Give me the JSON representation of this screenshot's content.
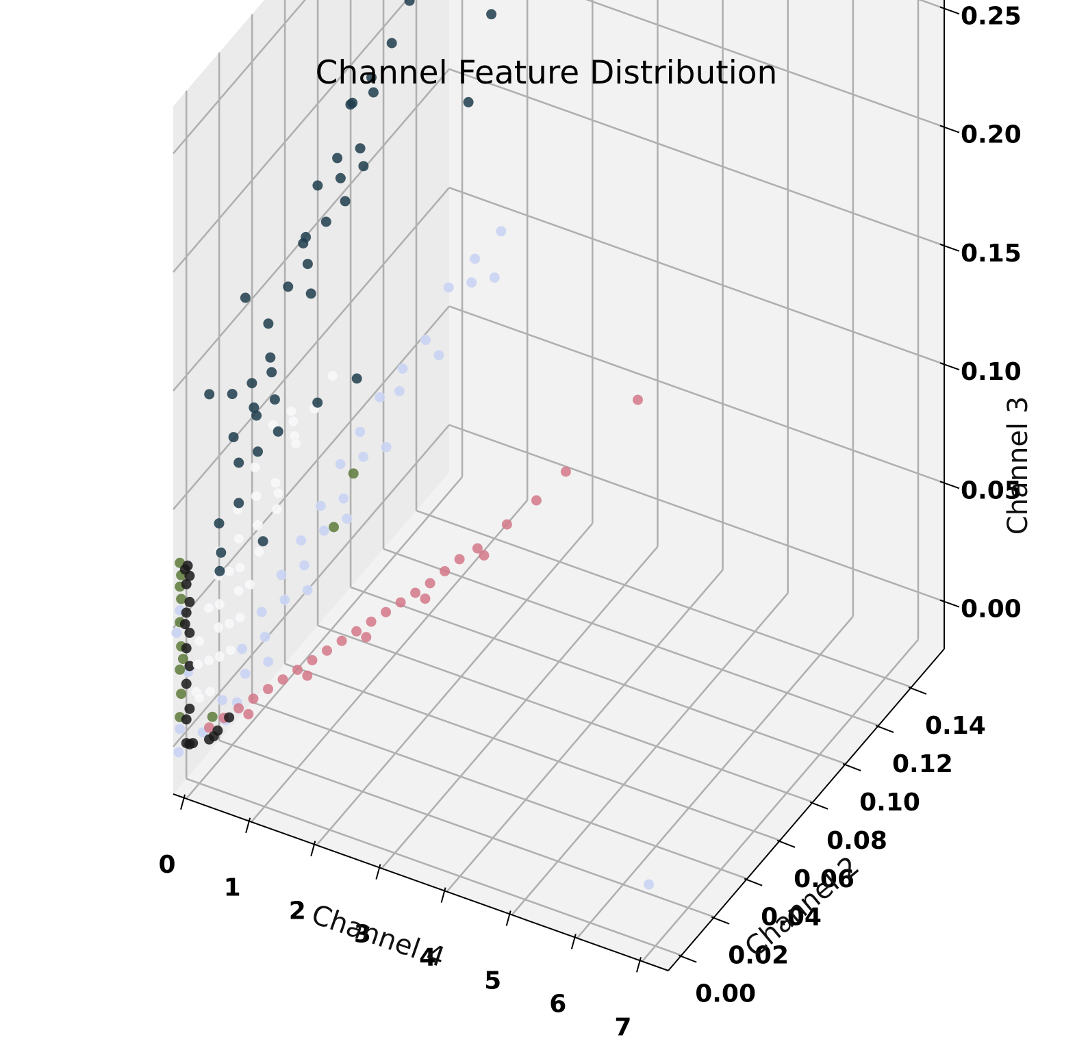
{
  "chart_data": {
    "type": "scatter",
    "dimensions": 3,
    "title": "Channel Feature Distribution",
    "xlabel": "Channel 4",
    "ylabel": "Channel 2",
    "zlabel": "Channel 3",
    "xlim": [
      -0.2,
      7.4
    ],
    "ylim": [
      -0.008,
      0.16
    ],
    "zlim": [
      -0.02,
      0.27
    ],
    "x_ticks": [
      "0",
      "1",
      "2",
      "3",
      "4",
      "5",
      "6",
      "7"
    ],
    "y_ticks": [
      "0.00",
      "0.02",
      "0.04",
      "0.06",
      "0.08",
      "0.10",
      "0.12",
      "0.14"
    ],
    "z_ticks": [
      "0.00",
      "0.05",
      "0.10",
      "0.15",
      "0.20",
      "0.25"
    ],
    "grid": true,
    "series": [
      {
        "color": "#1e3d4c",
        "points": [
          [
            0.15,
            0.16,
            0.265
          ],
          [
            0.12,
            0.15,
            0.255
          ],
          [
            0.08,
            0.14,
            0.24
          ],
          [
            0.1,
            0.14,
            0.238
          ],
          [
            0.3,
            0.16,
            0.228
          ],
          [
            0.22,
            0.14,
            0.225
          ],
          [
            0.5,
            0.16,
            0.232
          ],
          [
            0.2,
            0.12,
            0.215
          ],
          [
            0.25,
            0.13,
            0.213
          ],
          [
            0.35,
            0.14,
            0.205
          ],
          [
            0.18,
            0.11,
            0.205
          ],
          [
            0.12,
            0.1,
            0.198
          ],
          [
            0.05,
            0.09,
            0.194
          ],
          [
            0.08,
            0.09,
            0.195
          ],
          [
            0.15,
            0.1,
            0.192
          ],
          [
            0.1,
            0.08,
            0.18
          ],
          [
            0.2,
            0.09,
            0.177
          ],
          [
            0.05,
            0.07,
            0.176
          ],
          [
            0.15,
            0.08,
            0.172
          ],
          [
            0.25,
            0.09,
            0.17
          ],
          [
            0.08,
            0.06,
            0.16
          ],
          [
            0.12,
            0.06,
            0.163
          ],
          [
            0.18,
            0.07,
            0.162
          ],
          [
            0.22,
            0.08,
            0.163
          ],
          [
            -0.05,
            0.03,
            0.16
          ],
          [
            0.1,
            0.05,
            0.15
          ],
          [
            0.15,
            0.06,
            0.152
          ],
          [
            0.05,
            0.04,
            0.142
          ],
          [
            0.2,
            0.06,
            0.14
          ],
          [
            0.08,
            0.04,
            0.128
          ],
          [
            -0.1,
            0.01,
            0.135
          ],
          [
            0.0,
            0.02,
            0.128
          ],
          [
            0.05,
            0.03,
            0.125
          ],
          [
            0.1,
            0.04,
            0.122
          ],
          [
            0.08,
            0.03,
            0.115
          ],
          [
            0.02,
            0.02,
            0.11
          ],
          [
            0.12,
            0.03,
            0.112
          ],
          [
            0.15,
            0.04,
            0.111
          ],
          [
            0.1,
            0.02,
            0.1
          ],
          [
            0.14,
            0.03,
            0.097
          ],
          [
            0.2,
            0.04,
            0.098
          ],
          [
            0.05,
            0.01,
            0.082
          ],
          [
            0.1,
            0.02,
            0.083
          ],
          [
            0.08,
            0.01,
            0.07
          ],
          [
            0.22,
            0.03,
            0.06
          ],
          [
            0.3,
            0.06,
            0.095
          ],
          [
            0.4,
            0.08,
            0.09
          ],
          [
            0.6,
            0.14,
            0.16
          ],
          [
            0.7,
            0.15,
            0.19
          ],
          [
            0.06,
            0.01,
            0.062
          ]
        ]
      },
      {
        "color": "#f8f8f8",
        "points": [
          [
            0.12,
            0.04,
            0.1
          ],
          [
            0.15,
            0.05,
            0.098
          ],
          [
            0.18,
            0.05,
            0.094
          ],
          [
            0.1,
            0.03,
            0.09
          ],
          [
            0.2,
            0.05,
            0.088
          ],
          [
            0.08,
            0.02,
            0.08
          ],
          [
            0.12,
            0.03,
            0.078
          ],
          [
            0.16,
            0.04,
            0.076
          ],
          [
            0.05,
            0.01,
            0.07
          ],
          [
            0.1,
            0.02,
            0.068
          ],
          [
            0.14,
            0.03,
            0.066
          ],
          [
            0.18,
            0.04,
            0.065
          ],
          [
            0.04,
            0.01,
            0.06
          ],
          [
            0.08,
            0.015,
            0.058
          ],
          [
            0.12,
            0.02,
            0.056
          ],
          [
            0.16,
            0.03,
            0.055
          ],
          [
            0.02,
            0.005,
            0.05
          ],
          [
            0.06,
            0.01,
            0.048
          ],
          [
            0.1,
            0.02,
            0.046
          ],
          [
            0.14,
            0.025,
            0.045
          ],
          [
            0.0,
            0.0,
            0.04
          ],
          [
            0.04,
            0.01,
            0.038
          ],
          [
            0.08,
            0.015,
            0.036
          ],
          [
            0.12,
            0.02,
            0.035
          ],
          [
            -0.02,
            0.0,
            0.03
          ],
          [
            0.02,
            0.005,
            0.028
          ],
          [
            0.06,
            0.01,
            0.026
          ],
          [
            0.1,
            0.015,
            0.025
          ],
          [
            -0.05,
            0.0,
            0.018
          ],
          [
            0.0,
            0.0,
            0.016
          ],
          [
            0.04,
            0.005,
            0.015
          ],
          [
            0.22,
            0.05,
            0.085
          ],
          [
            0.25,
            0.06,
            0.092
          ],
          [
            0.28,
            0.07,
            0.098
          ],
          [
            0.2,
            0.04,
            0.072
          ]
        ]
      },
      {
        "color": "#c9d3f3",
        "points": [
          [
            6.9,
            0.0,
            0.005
          ],
          [
            0.8,
            0.12,
            0.1
          ],
          [
            0.9,
            0.13,
            0.095
          ],
          [
            1.0,
            0.14,
            0.09
          ],
          [
            0.7,
            0.11,
            0.085
          ],
          [
            0.6,
            0.1,
            0.08
          ],
          [
            0.5,
            0.09,
            0.075
          ],
          [
            0.55,
            0.1,
            0.07
          ],
          [
            0.45,
            0.08,
            0.068
          ],
          [
            0.65,
            0.12,
            0.07
          ],
          [
            0.4,
            0.07,
            0.062
          ],
          [
            0.5,
            0.08,
            0.058
          ],
          [
            0.6,
            0.09,
            0.055
          ],
          [
            0.35,
            0.06,
            0.052
          ],
          [
            0.45,
            0.07,
            0.048
          ],
          [
            0.3,
            0.05,
            0.045
          ],
          [
            0.4,
            0.06,
            0.042
          ],
          [
            0.5,
            0.07,
            0.04
          ],
          [
            0.25,
            0.04,
            0.038
          ],
          [
            0.35,
            0.05,
            0.035
          ],
          [
            0.2,
            0.03,
            0.03
          ],
          [
            0.3,
            0.04,
            0.028
          ],
          [
            0.4,
            0.05,
            0.025
          ],
          [
            0.15,
            0.02,
            0.022
          ],
          [
            0.25,
            0.03,
            0.02
          ],
          [
            0.2,
            0.02,
            0.012
          ],
          [
            0.3,
            0.03,
            0.01
          ],
          [
            0.1,
            0.01,
            0.008
          ],
          [
            0.2,
            0.015,
            0.004
          ],
          [
            0.15,
            0.01,
            0.0
          ],
          [
            0.7,
            0.14,
            0.095
          ],
          [
            0.85,
            0.15,
            0.1
          ],
          [
            -0.3,
            0.0,
            0.05
          ],
          [
            -0.35,
            0.0,
            0.04
          ],
          [
            -0.3,
            0.0,
            0.0
          ],
          [
            -0.32,
            0.0,
            -0.01
          ],
          [
            -0.3,
            0.005,
            0.02
          ],
          [
            0.05,
            0.0,
            0.002
          ]
        ]
      },
      {
        "color": "#d4788a",
        "points": [
          [
            0.15,
            0.0,
            0.005
          ],
          [
            0.25,
            0.005,
            0.006
          ],
          [
            0.35,
            0.01,
            0.007
          ],
          [
            0.45,
            0.015,
            0.008
          ],
          [
            0.55,
            0.02,
            0.009
          ],
          [
            0.65,
            0.025,
            0.01
          ],
          [
            0.75,
            0.03,
            0.011
          ],
          [
            0.85,
            0.035,
            0.012
          ],
          [
            0.95,
            0.04,
            0.013
          ],
          [
            1.05,
            0.045,
            0.014
          ],
          [
            1.15,
            0.05,
            0.015
          ],
          [
            1.25,
            0.055,
            0.016
          ],
          [
            1.35,
            0.06,
            0.017
          ],
          [
            1.45,
            0.065,
            0.018
          ],
          [
            1.55,
            0.07,
            0.019
          ],
          [
            1.65,
            0.075,
            0.02
          ],
          [
            1.75,
            0.08,
            0.022
          ],
          [
            1.85,
            0.085,
            0.024
          ],
          [
            2.0,
            0.09,
            0.026
          ],
          [
            2.2,
            0.1,
            0.03
          ],
          [
            2.4,
            0.11,
            0.034
          ],
          [
            2.6,
            0.12,
            0.04
          ],
          [
            3.2,
            0.14,
            0.06
          ],
          [
            0.5,
            0.01,
            0.006
          ],
          [
            0.9,
            0.03,
            0.01
          ],
          [
            1.3,
            0.05,
            0.014
          ],
          [
            1.7,
            0.07,
            0.018
          ],
          [
            2.1,
            0.09,
            0.024
          ]
        ]
      },
      {
        "color": "#5e7a3a",
        "points": [
          [
            -0.3,
            0.0,
            0.005
          ],
          [
            -0.28,
            0.0,
            0.015
          ],
          [
            -0.3,
            0.0,
            0.025
          ],
          [
            -0.28,
            0.0,
            0.035
          ],
          [
            -0.3,
            0.0,
            0.045
          ],
          [
            -0.28,
            0.0,
            0.055
          ],
          [
            -0.3,
            0.0,
            0.06
          ],
          [
            -0.28,
            0.0,
            0.065
          ],
          [
            -0.3,
            0.0,
            0.07
          ],
          [
            0.55,
            0.06,
            0.045
          ],
          [
            0.6,
            0.07,
            0.06
          ],
          [
            0.2,
            0.0,
            0.01
          ],
          [
            -0.25,
            0.0,
            0.03
          ]
        ]
      },
      {
        "color": "#1a1a1a",
        "points": [
          [
            -0.2,
            0.0,
            -0.005
          ],
          [
            -0.15,
            0.0,
            -0.005
          ],
          [
            -0.1,
            0.0,
            -0.004
          ],
          [
            -0.2,
            0.0,
            0.005
          ],
          [
            -0.15,
            0.0,
            0.01
          ],
          [
            -0.2,
            0.0,
            0.02
          ],
          [
            -0.15,
            0.0,
            0.028
          ],
          [
            -0.2,
            0.0,
            0.035
          ],
          [
            -0.15,
            0.0,
            0.042
          ],
          [
            -0.2,
            0.0,
            0.05
          ],
          [
            -0.15,
            0.0,
            0.055
          ],
          [
            -0.2,
            0.0,
            0.062
          ],
          [
            -0.15,
            0.0,
            0.066
          ],
          [
            -0.18,
            0.0,
            0.07
          ],
          [
            -0.22,
            0.0,
            0.068
          ],
          [
            0.15,
            0.0,
            0.0
          ],
          [
            0.22,
            0.0,
            0.002
          ],
          [
            0.28,
            0.0,
            0.005
          ],
          [
            0.33,
            0.005,
            0.007
          ],
          [
            -0.22,
            0.0,
            0.045
          ]
        ]
      }
    ]
  }
}
